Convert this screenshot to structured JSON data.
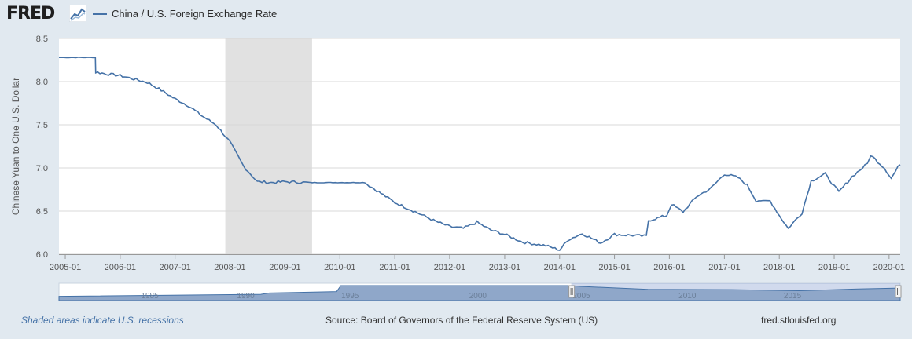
{
  "header": {
    "logo_text": "FRED",
    "logo_icon": "trend-line-icon",
    "legend_label": "China / U.S. Foreign Exchange Rate"
  },
  "footer": {
    "recession_note": "Shaded areas indicate U.S. recessions",
    "source": "Source: Board of Governors of the Federal Reserve System (US)",
    "site": "fred.stlouisfed.org"
  },
  "colors": {
    "series": "#4572a7",
    "recession": "#e1e1e1",
    "background": "#e1e9f0",
    "navigator_fill": "#8fa7c9"
  },
  "chart_data": {
    "type": "line",
    "title": "",
    "xlabel": "",
    "ylabel": "Chinese Yuan to One U.S. Dollar",
    "ylim": [
      6.0,
      8.5
    ],
    "yticks": [
      "6.0",
      "6.5",
      "7.0",
      "7.5",
      "8.0",
      "8.5"
    ],
    "xlim": [
      "2004-11-20",
      "2020-03-15"
    ],
    "xticks": [
      "2005-01",
      "2006-01",
      "2007-01",
      "2008-01",
      "2009-01",
      "2010-01",
      "2011-01",
      "2012-01",
      "2013-01",
      "2014-01",
      "2015-01",
      "2016-01",
      "2017-01",
      "2018-01",
      "2019-01",
      "2020-01"
    ],
    "xtick_labels": [
      "2005-01",
      "2006-01",
      "2007-01",
      "2008-01",
      "2009-01",
      "2010-01",
      "2011-01",
      "2012-01",
      "2013-01",
      "2014-01",
      "2015-01",
      "2016-01",
      "2017-01",
      "2018-01",
      "2019-01",
      "2020-01"
    ],
    "grid": true,
    "recessions": [
      [
        "2007-12-01",
        "2009-06-30"
      ]
    ],
    "series": [
      {
        "name": "China / U.S. Foreign Exchange Rate",
        "points": [
          [
            "2004-11-20",
            8.28
          ],
          [
            "2005-07-20",
            8.28
          ],
          [
            "2005-07-22",
            8.11
          ],
          [
            "2005-10-01",
            8.09
          ],
          [
            "2006-01-01",
            8.07
          ],
          [
            "2006-04-01",
            8.03
          ],
          [
            "2006-07-01",
            7.99
          ],
          [
            "2006-10-01",
            7.9
          ],
          [
            "2007-01-01",
            7.8
          ],
          [
            "2007-04-01",
            7.72
          ],
          [
            "2007-07-01",
            7.6
          ],
          [
            "2007-10-01",
            7.5
          ],
          [
            "2008-01-01",
            7.3
          ],
          [
            "2008-04-01",
            7.02
          ],
          [
            "2008-07-01",
            6.84
          ],
          [
            "2008-10-01",
            6.83
          ],
          [
            "2009-01-01",
            6.84
          ],
          [
            "2009-06-01",
            6.83
          ],
          [
            "2010-01-01",
            6.83
          ],
          [
            "2010-06-15",
            6.83
          ],
          [
            "2010-09-01",
            6.74
          ],
          [
            "2011-01-01",
            6.6
          ],
          [
            "2011-06-01",
            6.48
          ],
          [
            "2011-10-01",
            6.38
          ],
          [
            "2012-01-01",
            6.32
          ],
          [
            "2012-04-01",
            6.3
          ],
          [
            "2012-07-01",
            6.37
          ],
          [
            "2012-10-01",
            6.28
          ],
          [
            "2013-01-01",
            6.23
          ],
          [
            "2013-05-01",
            6.14
          ],
          [
            "2013-10-01",
            6.1
          ],
          [
            "2014-01-01",
            6.05
          ],
          [
            "2014-03-01",
            6.17
          ],
          [
            "2014-06-01",
            6.24
          ],
          [
            "2014-10-01",
            6.13
          ],
          [
            "2015-01-01",
            6.23
          ],
          [
            "2015-08-01",
            6.21
          ],
          [
            "2015-08-15",
            6.39
          ],
          [
            "2015-12-15",
            6.45
          ],
          [
            "2016-01-15",
            6.58
          ],
          [
            "2016-04-01",
            6.49
          ],
          [
            "2016-07-01",
            6.67
          ],
          [
            "2016-10-01",
            6.76
          ],
          [
            "2017-01-01",
            6.93
          ],
          [
            "2017-04-01",
            6.89
          ],
          [
            "2017-06-01",
            6.8
          ],
          [
            "2017-08-01",
            6.62
          ],
          [
            "2017-11-01",
            6.62
          ],
          [
            "2018-01-01",
            6.45
          ],
          [
            "2018-03-01",
            6.3
          ],
          [
            "2018-06-01",
            6.48
          ],
          [
            "2018-08-01",
            6.85
          ],
          [
            "2018-11-01",
            6.93
          ],
          [
            "2019-02-01",
            6.72
          ],
          [
            "2019-05-01",
            6.9
          ],
          [
            "2019-08-10",
            7.05
          ],
          [
            "2019-09-01",
            7.15
          ],
          [
            "2019-12-01",
            7.0
          ],
          [
            "2020-01-15",
            6.88
          ],
          [
            "2020-03-15",
            7.05
          ]
        ]
      }
    ],
    "navigator": {
      "xticks": [
        "1985",
        "1990",
        "1995",
        "2000",
        "2005",
        "2010",
        "2015"
      ]
    }
  }
}
